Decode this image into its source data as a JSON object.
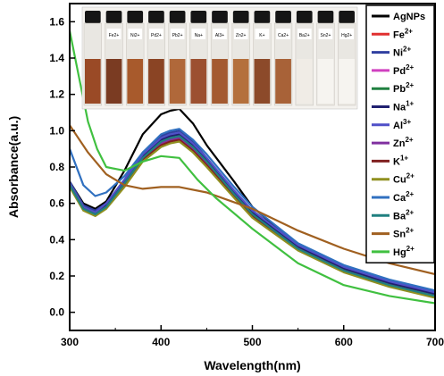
{
  "chart_data": {
    "type": "line",
    "xlabel": "Wavelength(nm)",
    "ylabel": "Absorbance(a.u.)",
    "xlim": [
      300,
      700
    ],
    "ylim": [
      -0.1,
      1.7
    ],
    "x_ticks": [
      "300",
      "400",
      "500",
      "600",
      "700"
    ],
    "y_ticks": [
      "0.0",
      "0.2",
      "0.4",
      "0.6",
      "0.8",
      "1.0",
      "1.2",
      "1.4",
      "1.6"
    ],
    "legend_position": "right",
    "inset_vial_labels": [
      "Fe2+",
      "Ni2+",
      "Pd2+",
      "Pb2+",
      "Na+",
      "Al3+",
      "Zn2+",
      "K+",
      "Ca2+",
      "Ba2+",
      "Sn2+",
      "Hg2+"
    ],
    "series": [
      {
        "name": "AgNPs",
        "color": "#000000",
        "legend_base": "AgNPs",
        "legend_sup": "",
        "x": [
          300,
          315,
          328,
          340,
          360,
          380,
          400,
          410,
          420,
          435,
          450,
          480,
          500,
          550,
          600,
          650,
          700
        ],
        "y": [
          0.72,
          0.6,
          0.57,
          0.61,
          0.78,
          0.98,
          1.09,
          1.11,
          1.12,
          1.04,
          0.92,
          0.72,
          0.58,
          0.37,
          0.25,
          0.17,
          0.11
        ]
      },
      {
        "name": "Fe2+",
        "color": "#e03030",
        "legend_base": "Fe",
        "legend_sup": "2+",
        "x": [
          300,
          315,
          328,
          340,
          360,
          380,
          400,
          410,
          420,
          435,
          450,
          480,
          500,
          550,
          600,
          650,
          700
        ],
        "y": [
          0.71,
          0.58,
          0.55,
          0.59,
          0.72,
          0.86,
          0.95,
          0.97,
          0.98,
          0.92,
          0.84,
          0.66,
          0.55,
          0.36,
          0.24,
          0.16,
          0.1
        ]
      },
      {
        "name": "Ni2+",
        "color": "#3040a0",
        "legend_base": "Ni",
        "legend_sup": "2+",
        "x": [
          300,
          315,
          328,
          340,
          360,
          380,
          400,
          410,
          420,
          435,
          450,
          480,
          500,
          550,
          600,
          650,
          700
        ],
        "y": [
          0.72,
          0.59,
          0.56,
          0.6,
          0.73,
          0.88,
          0.97,
          0.99,
          1.0,
          0.94,
          0.85,
          0.67,
          0.56,
          0.37,
          0.25,
          0.17,
          0.11
        ]
      },
      {
        "name": "Pd2+",
        "color": "#d040c0",
        "legend_base": "Pd",
        "legend_sup": "2+",
        "x": [
          300,
          315,
          328,
          340,
          360,
          380,
          400,
          410,
          420,
          435,
          450,
          480,
          500,
          550,
          600,
          650,
          700
        ],
        "y": [
          0.7,
          0.57,
          0.54,
          0.58,
          0.71,
          0.85,
          0.94,
          0.96,
          0.97,
          0.91,
          0.83,
          0.65,
          0.54,
          0.35,
          0.23,
          0.15,
          0.09
        ]
      },
      {
        "name": "Pb2+",
        "color": "#208040",
        "legend_base": "Pb",
        "legend_sup": "2+",
        "x": [
          300,
          315,
          328,
          340,
          360,
          380,
          400,
          410,
          420,
          435,
          450,
          480,
          500,
          550,
          600,
          650,
          700
        ],
        "y": [
          0.71,
          0.58,
          0.55,
          0.59,
          0.72,
          0.87,
          0.96,
          0.98,
          0.99,
          0.93,
          0.84,
          0.66,
          0.55,
          0.36,
          0.24,
          0.16,
          0.1
        ]
      },
      {
        "name": "Na1+",
        "color": "#202070",
        "legend_base": "Na",
        "legend_sup": "1+",
        "x": [
          300,
          315,
          328,
          340,
          360,
          380,
          400,
          410,
          420,
          435,
          450,
          480,
          500,
          550,
          600,
          650,
          700
        ],
        "y": [
          0.7,
          0.57,
          0.55,
          0.59,
          0.72,
          0.86,
          0.95,
          0.97,
          0.98,
          0.92,
          0.84,
          0.66,
          0.55,
          0.36,
          0.24,
          0.16,
          0.1
        ]
      },
      {
        "name": "Al3+",
        "color": "#5050c8",
        "legend_base": "Al",
        "legend_sup": "3+",
        "x": [
          300,
          315,
          328,
          340,
          360,
          380,
          400,
          410,
          420,
          435,
          450,
          480,
          500,
          550,
          600,
          650,
          700
        ],
        "y": [
          0.71,
          0.58,
          0.55,
          0.6,
          0.73,
          0.87,
          0.96,
          0.98,
          0.99,
          0.93,
          0.85,
          0.67,
          0.56,
          0.37,
          0.25,
          0.17,
          0.11
        ]
      },
      {
        "name": "Zn2+",
        "color": "#8030a0",
        "legend_base": "Zn",
        "legend_sup": "2+",
        "x": [
          300,
          315,
          328,
          340,
          360,
          380,
          400,
          410,
          420,
          435,
          450,
          480,
          500,
          550,
          600,
          650,
          700
        ],
        "y": [
          0.7,
          0.57,
          0.54,
          0.58,
          0.7,
          0.84,
          0.93,
          0.95,
          0.96,
          0.9,
          0.82,
          0.64,
          0.53,
          0.35,
          0.23,
          0.15,
          0.09
        ]
      },
      {
        "name": "K1+",
        "color": "#802020",
        "legend_base": "K",
        "legend_sup": "1+",
        "x": [
          300,
          315,
          328,
          340,
          360,
          380,
          400,
          410,
          420,
          435,
          450,
          480,
          500,
          550,
          600,
          650,
          700
        ],
        "y": [
          0.7,
          0.57,
          0.54,
          0.58,
          0.7,
          0.84,
          0.92,
          0.94,
          0.95,
          0.89,
          0.81,
          0.64,
          0.53,
          0.35,
          0.23,
          0.15,
          0.09
        ]
      },
      {
        "name": "Cu2+",
        "color": "#909020",
        "legend_base": "Cu",
        "legend_sup": "2+",
        "x": [
          300,
          315,
          328,
          340,
          360,
          380,
          400,
          410,
          420,
          435,
          450,
          480,
          500,
          550,
          600,
          650,
          700
        ],
        "y": [
          0.69,
          0.56,
          0.53,
          0.57,
          0.69,
          0.83,
          0.91,
          0.93,
          0.94,
          0.88,
          0.8,
          0.63,
          0.52,
          0.34,
          0.22,
          0.14,
          0.08
        ]
      },
      {
        "name": "Ca2+",
        "color": "#3070c0",
        "legend_base": "Ca",
        "legend_sup": "2+",
        "x": [
          300,
          315,
          328,
          340,
          360,
          380,
          400,
          410,
          420,
          435,
          450,
          480,
          500,
          550,
          600,
          650,
          700
        ],
        "y": [
          0.9,
          0.7,
          0.64,
          0.66,
          0.75,
          0.88,
          0.98,
          1.0,
          1.01,
          0.95,
          0.87,
          0.69,
          0.58,
          0.38,
          0.26,
          0.18,
          0.12
        ]
      },
      {
        "name": "Ba2+",
        "color": "#208080",
        "legend_base": "Ba",
        "legend_sup": "2+",
        "x": [
          300,
          315,
          328,
          340,
          360,
          380,
          400,
          410,
          420,
          435,
          450,
          480,
          500,
          550,
          600,
          650,
          700
        ],
        "y": [
          0.7,
          0.57,
          0.54,
          0.58,
          0.71,
          0.85,
          0.94,
          0.96,
          0.97,
          0.91,
          0.83,
          0.65,
          0.54,
          0.35,
          0.23,
          0.15,
          0.09
        ]
      },
      {
        "name": "Sn2+",
        "color": "#a06020",
        "legend_base": "Sn",
        "legend_sup": "2+",
        "x": [
          300,
          320,
          340,
          360,
          380,
          400,
          420,
          450,
          500,
          550,
          600,
          650,
          700
        ],
        "y": [
          1.03,
          0.88,
          0.76,
          0.7,
          0.68,
          0.69,
          0.69,
          0.66,
          0.57,
          0.45,
          0.35,
          0.27,
          0.21
        ]
      },
      {
        "name": "Hg2+",
        "color": "#40c040",
        "legend_base": "Hg",
        "legend_sup": "2+",
        "x": [
          300,
          310,
          320,
          330,
          340,
          360,
          380,
          400,
          420,
          440,
          460,
          500,
          550,
          600,
          650,
          700
        ],
        "y": [
          1.55,
          1.3,
          1.05,
          0.9,
          0.8,
          0.78,
          0.83,
          0.86,
          0.85,
          0.73,
          0.63,
          0.46,
          0.27,
          0.15,
          0.09,
          0.05
        ]
      }
    ]
  }
}
